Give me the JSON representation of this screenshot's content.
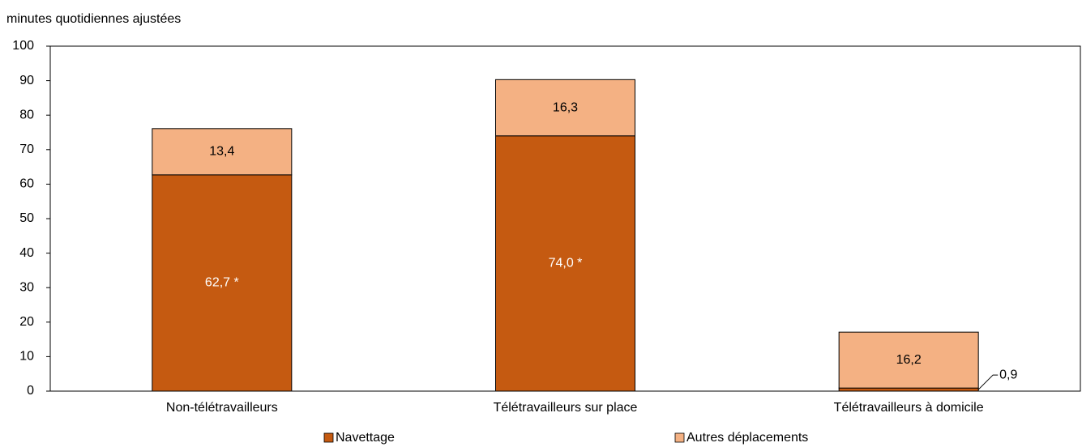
{
  "chart_data": {
    "type": "stacked_bar",
    "y_label": "minutes quotidiennes ajustées",
    "categories": [
      "Non-télétravailleurs",
      "Télétravailleurs sur place",
      "Télétravailleurs à domicile"
    ],
    "series": [
      {
        "name": "Navettage",
        "color": "#c55a11",
        "values": [
          62.7,
          74.0,
          0.9
        ],
        "value_labels": [
          "62,7 *",
          "74,0 *",
          "0,9"
        ]
      },
      {
        "name": "Autres déplacements",
        "color": "#f4b183",
        "values": [
          13.4,
          16.3,
          16.2
        ],
        "value_labels": [
          "13,4",
          "16,3",
          "16,2"
        ]
      }
    ],
    "ylim": [
      0,
      100
    ],
    "yticks": [
      0,
      10,
      20,
      30,
      40,
      50,
      60,
      70,
      80,
      90,
      100
    ]
  }
}
